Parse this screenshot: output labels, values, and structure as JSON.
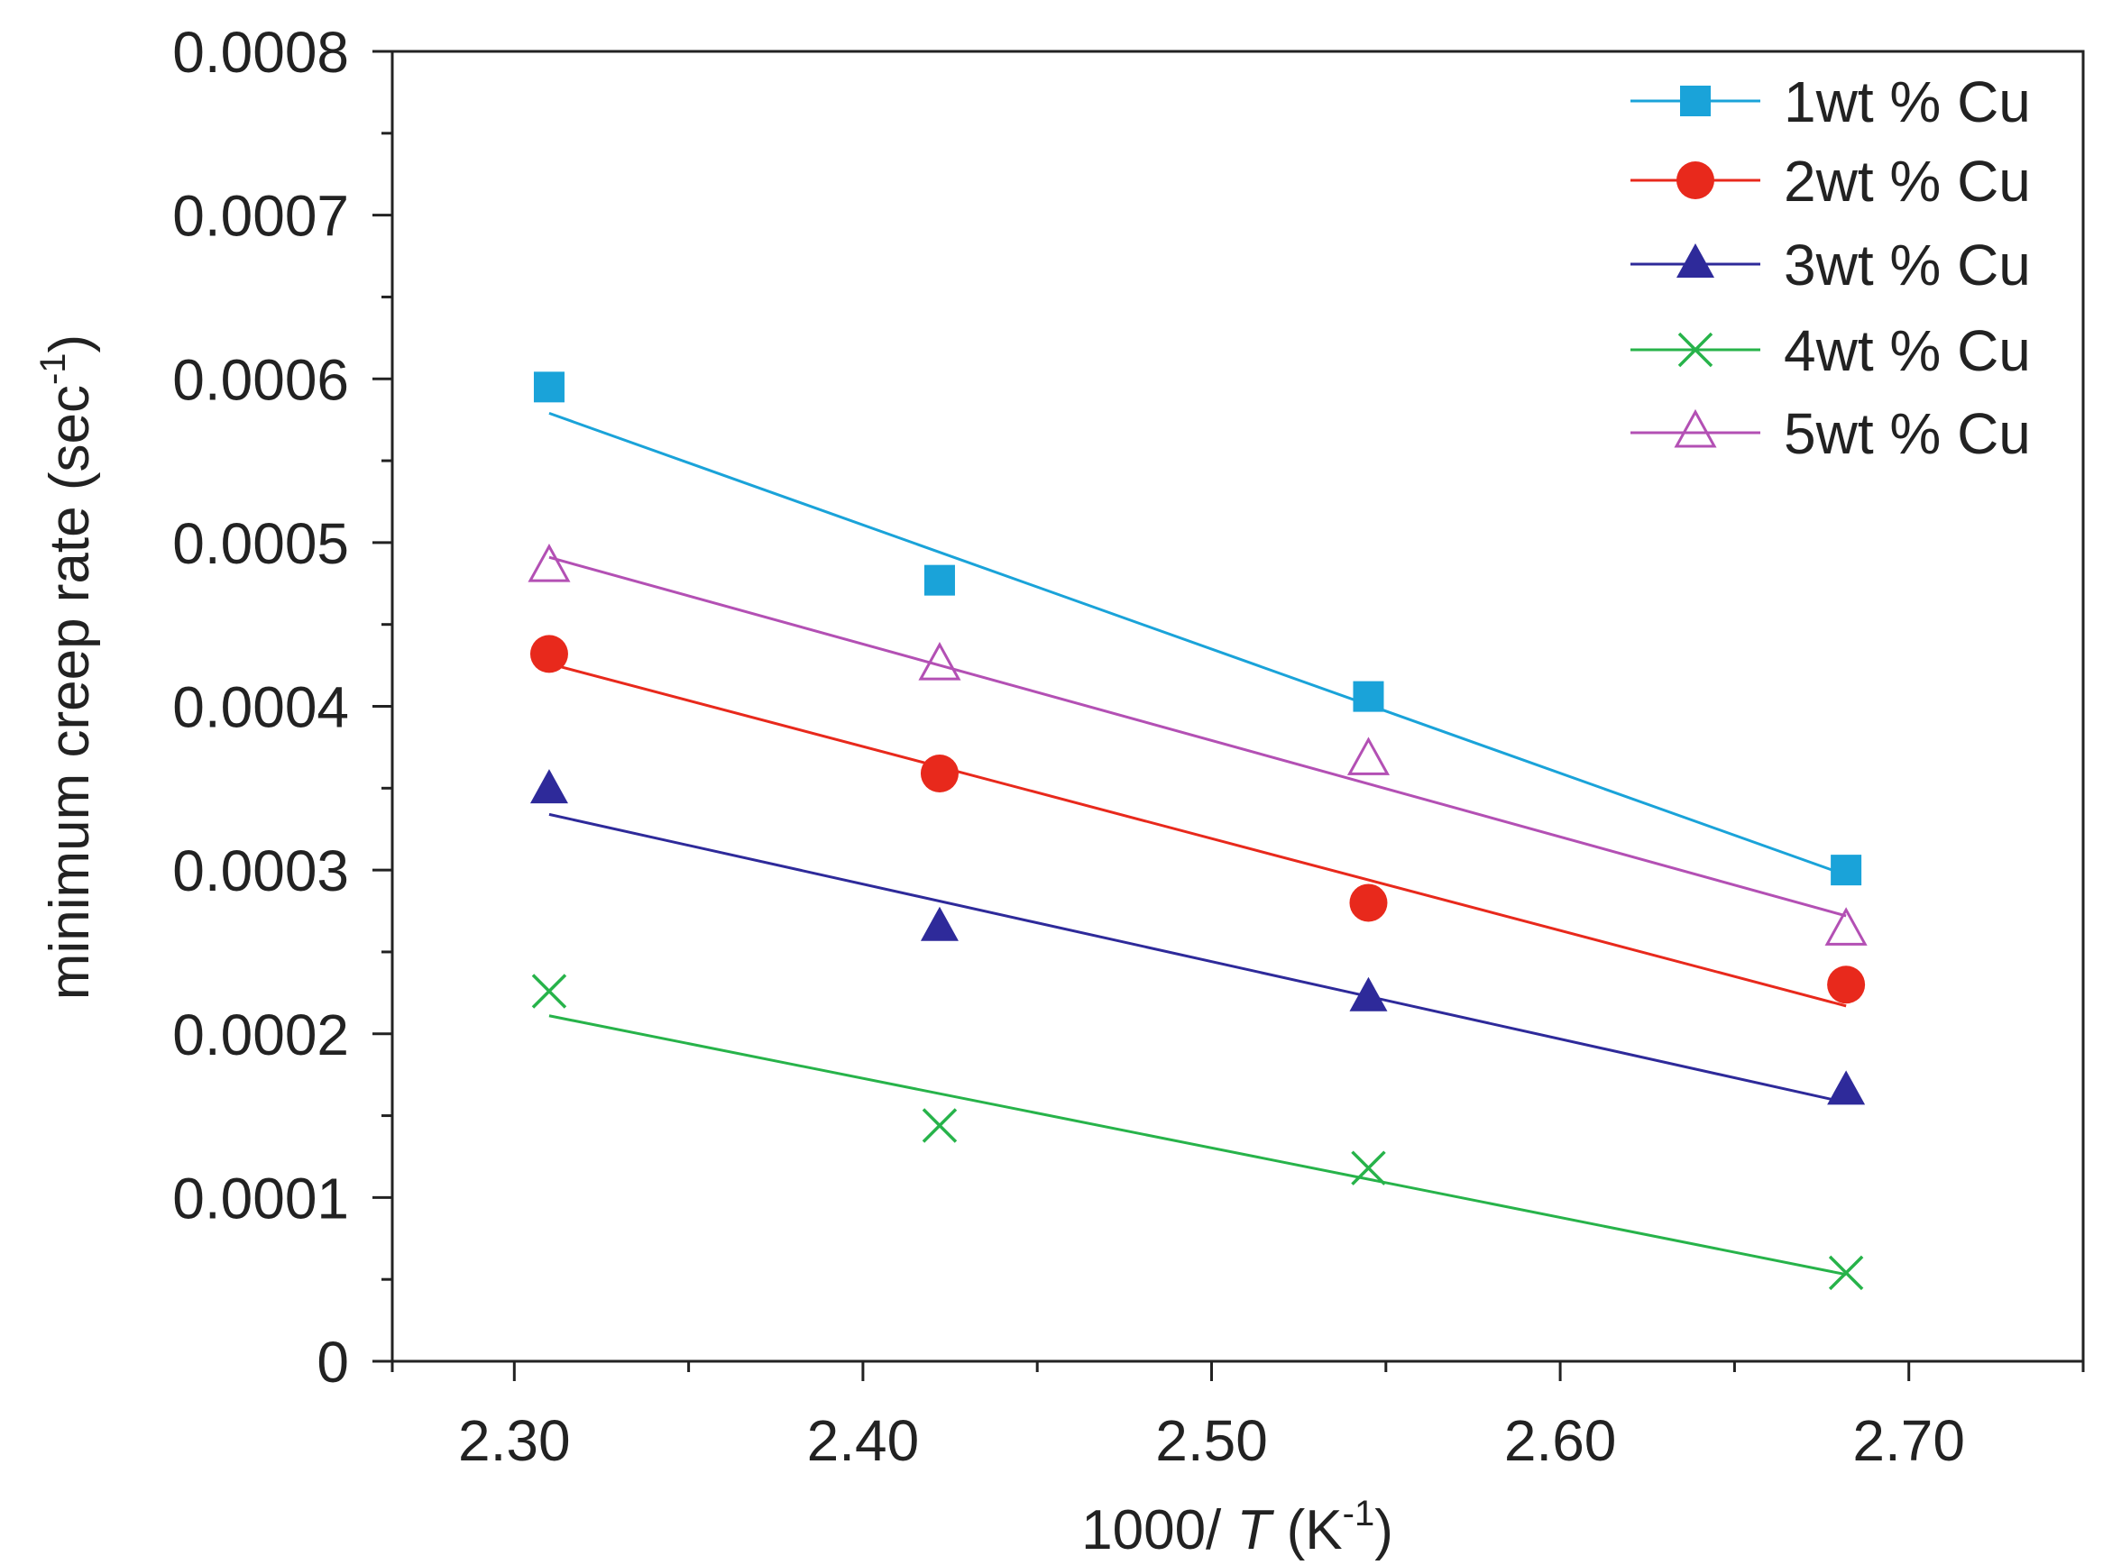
{
  "chart_data": {
    "type": "scatter",
    "title": "",
    "xlabel": {
      "prefix": "1000/ ",
      "italic": "T",
      "unit_open": " (K",
      "sup": "-1",
      "unit_close": ")"
    },
    "ylabel": {
      "main": "minimum creep rate (sec",
      "sup": "-1",
      "close": ")"
    },
    "xlim": [
      2.265,
      2.75
    ],
    "ylim": [
      0,
      0.0008
    ],
    "xticks": [
      {
        "value": 2.3,
        "label": "2.30"
      },
      {
        "value": 2.4,
        "label": "2.40"
      },
      {
        "value": 2.5,
        "label": "2.50"
      },
      {
        "value": 2.6,
        "label": "2.60"
      },
      {
        "value": 2.7,
        "label": "2.70"
      }
    ],
    "yticks": [
      {
        "value": 0,
        "label": "0"
      },
      {
        "value": 0.0001,
        "label": "0.0001"
      },
      {
        "value": 0.0002,
        "label": "0.0002"
      },
      {
        "value": 0.0003,
        "label": "0.0003"
      },
      {
        "value": 0.0004,
        "label": "0.0004"
      },
      {
        "value": 0.0005,
        "label": "0.0005"
      },
      {
        "value": 0.0006,
        "label": "0.0006"
      },
      {
        "value": 0.0007,
        "label": "0.0007"
      },
      {
        "value": 0.0008,
        "label": "0.0008"
      }
    ],
    "legend_position": "top-right",
    "x": [
      2.31,
      2.422,
      2.545,
      2.682
    ],
    "series": [
      {
        "name": "1wt % Cu",
        "marker": "filled-square",
        "color": "#1aa3d9",
        "values": [
          0.000595,
          0.000477,
          0.000406,
          0.0003
        ],
        "fit": [
          0.000579,
          0.000297
        ]
      },
      {
        "name": "2wt % Cu",
        "marker": "filled-circle",
        "color": "#e8291c",
        "values": [
          0.000432,
          0.000359,
          0.00028,
          0.00023
        ],
        "fit": [
          0.000426,
          0.000217
        ]
      },
      {
        "name": "3wt % Cu",
        "marker": "filled-triangle",
        "color": "#2e2a9a",
        "values": [
          0.000349,
          0.000265,
          0.000222,
          0.000165
        ],
        "fit": [
          0.000334,
          0.000158
        ]
      },
      {
        "name": "4wt % Cu",
        "marker": "cross",
        "color": "#27b34a",
        "values": [
          0.000226,
          0.000144,
          0.000118,
          5.4e-05
        ],
        "fit": [
          0.000211,
          5.3e-05
        ]
      },
      {
        "name": "5wt % Cu",
        "marker": "open-triangle",
        "color": "#b350b4",
        "values": [
          0.000485,
          0.000425,
          0.000367,
          0.000263
        ],
        "fit": [
          0.000491,
          0.000272
        ]
      }
    ]
  }
}
